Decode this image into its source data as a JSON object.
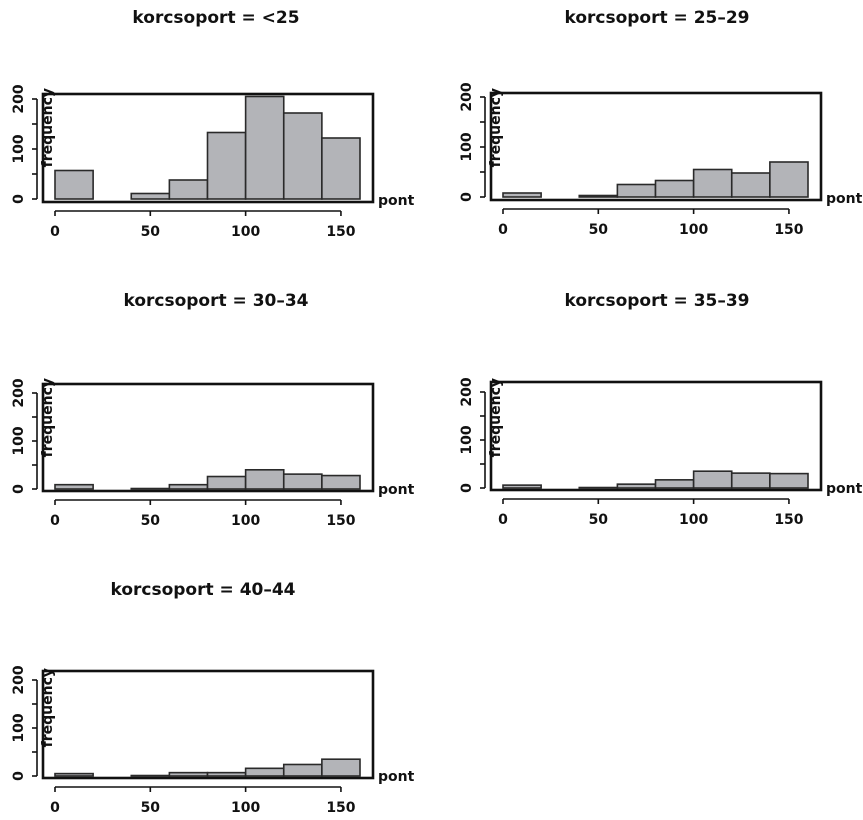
{
  "colors": {
    "bar_fill": "#b3b4b8",
    "bar_stroke": "#2a2a2a",
    "axis": "#111111",
    "background": "#ffffff"
  },
  "chart_data": [
    {
      "type": "bar",
      "title": "korcsoport = <25",
      "xlabel": "pont",
      "ylabel": "frequency",
      "bin_edges": [
        0,
        20,
        40,
        60,
        80,
        100,
        120,
        140,
        160
      ],
      "values": [
        57,
        0,
        11,
        38,
        133,
        205,
        172,
        122
      ],
      "xlim": [
        0,
        160
      ],
      "ylim": [
        0,
        220
      ],
      "x_ticks": [
        0,
        50,
        100,
        150
      ],
      "y_ticks": [
        0,
        100,
        200
      ],
      "grid": false,
      "legend": false
    },
    {
      "type": "bar",
      "title": "korcsoport = 25–29",
      "xlabel": "pont",
      "ylabel": "frequency",
      "bin_edges": [
        0,
        20,
        40,
        60,
        80,
        100,
        120,
        140,
        160
      ],
      "values": [
        8,
        0,
        3,
        25,
        33,
        55,
        48,
        70
      ],
      "xlim": [
        0,
        160
      ],
      "ylim": [
        0,
        220
      ],
      "x_ticks": [
        0,
        50,
        100,
        150
      ],
      "y_ticks": [
        0,
        100,
        200
      ],
      "grid": false,
      "legend": false
    },
    {
      "type": "bar",
      "title": "korcsoport = 30–34",
      "xlabel": "pont",
      "ylabel": "frequency",
      "bin_edges": [
        0,
        20,
        40,
        60,
        80,
        100,
        120,
        140,
        160
      ],
      "values": [
        9,
        0,
        1,
        9,
        26,
        40,
        31,
        28
      ],
      "xlim": [
        0,
        160
      ],
      "ylim": [
        0,
        220
      ],
      "x_ticks": [
        0,
        50,
        100,
        150
      ],
      "y_ticks": [
        0,
        100,
        200
      ],
      "grid": false,
      "legend": false
    },
    {
      "type": "bar",
      "title": "korcsoport = 35–39",
      "xlabel": "pont",
      "ylabel": "frequency",
      "bin_edges": [
        0,
        20,
        40,
        60,
        80,
        100,
        120,
        140,
        160
      ],
      "values": [
        6,
        0,
        1,
        8,
        17,
        35,
        31,
        30
      ],
      "xlim": [
        0,
        160
      ],
      "ylim": [
        0,
        220
      ],
      "x_ticks": [
        0,
        50,
        100,
        150
      ],
      "y_ticks": [
        0,
        100,
        200
      ],
      "grid": false,
      "legend": false
    },
    {
      "type": "bar",
      "title": "korcsoport = 40–44",
      "xlabel": "pont",
      "ylabel": "frequency",
      "bin_edges": [
        0,
        20,
        40,
        60,
        80,
        100,
        120,
        140,
        160
      ],
      "values": [
        5,
        0,
        1,
        7,
        7,
        16,
        24,
        35
      ],
      "xlim": [
        0,
        160
      ],
      "ylim": [
        0,
        220
      ],
      "x_ticks": [
        0,
        50,
        100,
        150
      ],
      "y_ticks": [
        0,
        100,
        200
      ],
      "grid": false,
      "legend": false
    }
  ]
}
